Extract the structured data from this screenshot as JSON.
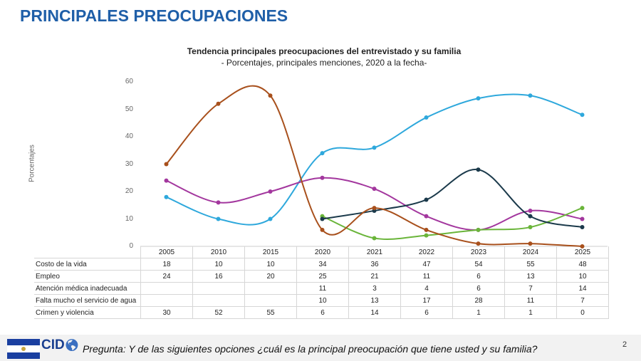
{
  "header": {
    "title": "PRINCIPALES PREOCUPACIONES"
  },
  "chart_data": {
    "type": "line",
    "title": "Tendencia principales preocupaciones del entrevistado y su familia",
    "subtitle": "- Porcentajes, principales menciones, 2020 a la fecha-",
    "ylabel": "Porcentajes",
    "ylim": [
      0,
      60
    ],
    "yticks": [
      "0",
      "10",
      "20",
      "30",
      "40",
      "50",
      "60"
    ],
    "categories": [
      "2005",
      "2010",
      "2015",
      "2020",
      "2021",
      "2022",
      "2023",
      "2024",
      "2025"
    ],
    "series": [
      {
        "name": "Costo de la vida",
        "color": "#2ea8dc",
        "values": [
          18,
          10,
          10,
          34,
          36,
          47,
          54,
          55,
          48
        ]
      },
      {
        "name": "Empleo",
        "color": "#a3379e",
        "values": [
          24,
          16,
          20,
          25,
          21,
          11,
          6,
          13,
          10
        ]
      },
      {
        "name": "Atención médica inadecuada",
        "color": "#6ab53a",
        "values": [
          null,
          null,
          null,
          11,
          3,
          4,
          6,
          7,
          14
        ]
      },
      {
        "name": "Falta mucho el servicio de agua",
        "color": "#1b3a4b",
        "values": [
          null,
          null,
          null,
          10,
          13,
          17,
          28,
          11,
          7
        ]
      },
      {
        "name": "Crimen y violencia",
        "color": "#a8501c",
        "values": [
          30,
          52,
          55,
          6,
          14,
          6,
          1,
          1,
          0
        ]
      }
    ]
  },
  "footer": {
    "logo_text": "CID Gallup",
    "question": "Pregunta: Y de las siguientes opciones ¿cuál es la principal preocupación que tiene usted y su familia?",
    "page": "2"
  }
}
